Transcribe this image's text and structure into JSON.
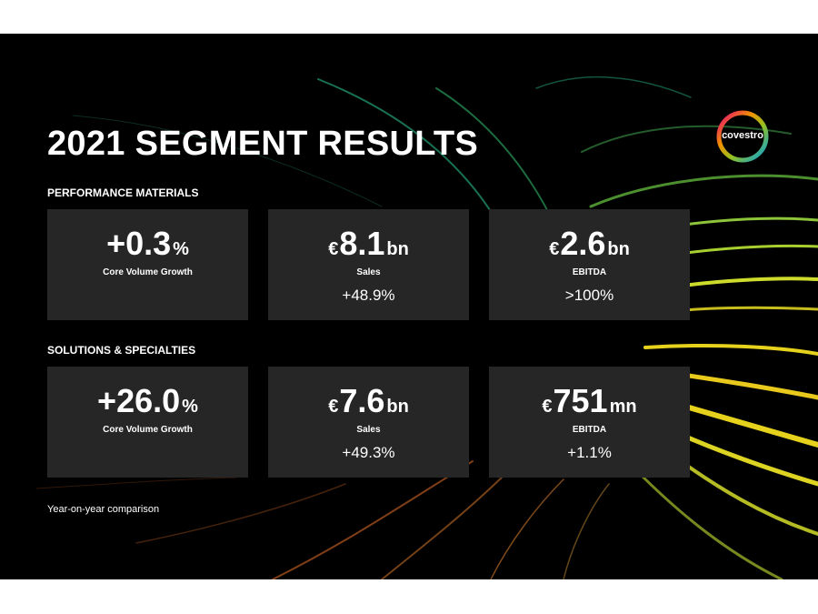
{
  "title": "2021 SEGMENT RESULTS",
  "logo": {
    "text": "covestro"
  },
  "colors": {
    "background": "#000000",
    "card": "#262626",
    "text": "#ffffff",
    "swoosh_yellow": "#e6d21c",
    "swoosh_green": "#7fc23a",
    "swoosh_teal": "#1f8c6a",
    "swoosh_orange": "#b5581f"
  },
  "segments": [
    {
      "name": "PERFORMANCE MATERIALS",
      "metrics": [
        {
          "currency": "",
          "value": "+0.3",
          "unit": "%",
          "label": "Core Volume Growth",
          "change": ""
        },
        {
          "currency": "€",
          "value": "8.1",
          "unit": "bn",
          "label": "Sales",
          "change": "+48.9%"
        },
        {
          "currency": "€",
          "value": "2.6",
          "unit": "bn",
          "label": "EBITDA",
          "change": ">100%"
        }
      ]
    },
    {
      "name": "SOLUTIONS & SPECIALTIES",
      "metrics": [
        {
          "currency": "",
          "value": "+26.0",
          "unit": "%",
          "label": "Core Volume Growth",
          "change": ""
        },
        {
          "currency": "€",
          "value": "7.6",
          "unit": "bn",
          "label": "Sales",
          "change": "+49.3%"
        },
        {
          "currency": "€",
          "value": "751",
          "unit": "mn",
          "label": "EBITDA",
          "change": "+1.1%"
        }
      ]
    }
  ],
  "footnote": "Year-on-year comparison"
}
